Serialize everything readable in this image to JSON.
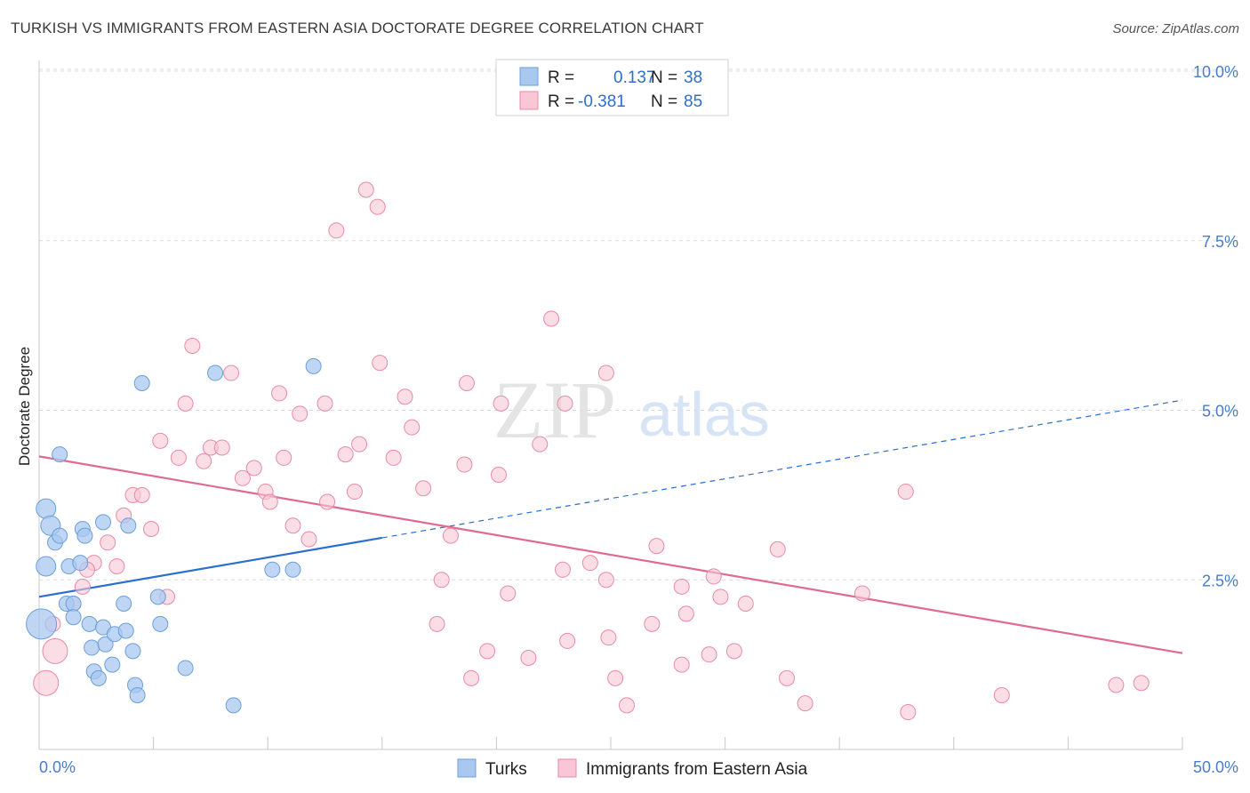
{
  "header": {
    "title": "TURKISH VS IMMIGRANTS FROM EASTERN ASIA DOCTORATE DEGREE CORRELATION CHART",
    "source": "Source: ZipAtlas.com"
  },
  "watermark": {
    "zip": "ZIP",
    "atlas": "atlas"
  },
  "legend": {
    "rows": [
      {
        "r_label": "R =",
        "r_value": "0.137",
        "n_label": "N =",
        "n_value": "38",
        "color": "#a8c8f0"
      },
      {
        "r_label": "R =",
        "r_value": "-0.381",
        "n_label": "N =",
        "n_value": "85",
        "color": "#f5b8cb"
      }
    ]
  },
  "bottom_legend": {
    "items": [
      {
        "label": "Turks",
        "color": "#a8c8f0"
      },
      {
        "label": "Immigrants from Eastern Asia",
        "color": "#f5b8cb"
      }
    ]
  },
  "colors": {
    "turks_fill": "#a8c8f0",
    "turks_stroke": "#6b9fd8",
    "turks_line": "#2a6fd0",
    "imm_fill": "#f8c6d5",
    "imm_stroke": "#e88aa8",
    "imm_line": "#e06a92",
    "grid": "#dcdcdc",
    "axis_text": "#4a7cc7"
  },
  "chart_data": {
    "type": "scatter",
    "title": "TURKISH VS IMMIGRANTS FROM EASTERN ASIA DOCTORATE DEGREE CORRELATION CHART",
    "xlabel": "",
    "ylabel": "Doctorate Degree",
    "xlim": [
      0,
      50
    ],
    "ylim": [
      0,
      10.5
    ],
    "x_tick_labels": [
      "0.0%",
      "50.0%"
    ],
    "y_ticks": [
      2.5,
      5.0,
      7.5,
      10.0
    ],
    "y_tick_labels": [
      "2.5%",
      "5.0%",
      "7.5%",
      "10.0%"
    ],
    "grid": true,
    "legend_position": "top-center",
    "series": [
      {
        "name": "Turks",
        "points": [
          [
            0.3,
            3.55
          ],
          [
            0.5,
            3.3
          ],
          [
            0.7,
            3.05
          ],
          [
            0.9,
            3.15
          ],
          [
            0.3,
            2.7
          ],
          [
            1.3,
            2.7
          ],
          [
            1.9,
            3.25
          ],
          [
            2.0,
            3.15
          ],
          [
            1.8,
            2.75
          ],
          [
            1.2,
            2.15
          ],
          [
            1.5,
            2.15
          ],
          [
            1.5,
            1.95
          ],
          [
            0.9,
            4.35
          ],
          [
            2.2,
            1.85
          ],
          [
            2.3,
            1.5
          ],
          [
            2.9,
            1.55
          ],
          [
            2.8,
            1.8
          ],
          [
            3.3,
            1.7
          ],
          [
            3.8,
            1.75
          ],
          [
            4.1,
            1.45
          ],
          [
            2.4,
            1.15
          ],
          [
            2.6,
            1.05
          ],
          [
            3.2,
            1.25
          ],
          [
            4.2,
            0.95
          ],
          [
            4.3,
            0.8
          ],
          [
            3.7,
            2.15
          ],
          [
            2.8,
            3.35
          ],
          [
            3.9,
            3.3
          ],
          [
            4.5,
            5.4
          ],
          [
            7.7,
            5.55
          ],
          [
            12.0,
            5.65
          ],
          [
            5.2,
            2.25
          ],
          [
            5.3,
            1.85
          ],
          [
            6.4,
            1.2
          ],
          [
            8.5,
            0.65
          ],
          [
            10.2,
            2.65
          ],
          [
            11.1,
            2.65
          ],
          [
            0.1,
            1.85
          ]
        ],
        "trend": {
          "x0": 0,
          "y0": 2.25,
          "x1": 15.0,
          "y1": 3.12,
          "dash_to_x": 50,
          "dash_to_y": 5.15
        }
      },
      {
        "name": "Immigrants from Eastern Asia",
        "points": [
          [
            14.3,
            8.25
          ],
          [
            14.8,
            8.0
          ],
          [
            13.0,
            7.65
          ],
          [
            22.4,
            6.35
          ],
          [
            6.7,
            5.95
          ],
          [
            14.9,
            5.7
          ],
          [
            8.4,
            5.55
          ],
          [
            24.8,
            5.55
          ],
          [
            10.5,
            5.25
          ],
          [
            16.0,
            5.2
          ],
          [
            6.4,
            5.1
          ],
          [
            12.5,
            5.1
          ],
          [
            18.7,
            5.4
          ],
          [
            20.2,
            5.1
          ],
          [
            23.0,
            5.1
          ],
          [
            11.4,
            4.95
          ],
          [
            16.3,
            4.75
          ],
          [
            5.3,
            4.55
          ],
          [
            7.5,
            4.45
          ],
          [
            8.0,
            4.45
          ],
          [
            13.4,
            4.35
          ],
          [
            15.5,
            4.3
          ],
          [
            6.1,
            4.3
          ],
          [
            10.7,
            4.3
          ],
          [
            14.0,
            4.5
          ],
          [
            21.9,
            4.5
          ],
          [
            7.2,
            4.25
          ],
          [
            18.6,
            4.2
          ],
          [
            9.4,
            4.15
          ],
          [
            8.9,
            4.0
          ],
          [
            20.1,
            4.05
          ],
          [
            16.8,
            3.85
          ],
          [
            9.9,
            3.8
          ],
          [
            13.8,
            3.8
          ],
          [
            4.1,
            3.75
          ],
          [
            4.5,
            3.75
          ],
          [
            12.6,
            3.65
          ],
          [
            10.1,
            3.65
          ],
          [
            37.9,
            3.8
          ],
          [
            3.7,
            3.45
          ],
          [
            4.9,
            3.25
          ],
          [
            11.1,
            3.3
          ],
          [
            18.0,
            3.15
          ],
          [
            11.8,
            3.1
          ],
          [
            3.0,
            3.05
          ],
          [
            27.0,
            3.0
          ],
          [
            32.3,
            2.95
          ],
          [
            2.4,
            2.75
          ],
          [
            24.1,
            2.75
          ],
          [
            3.4,
            2.7
          ],
          [
            22.9,
            2.65
          ],
          [
            2.1,
            2.65
          ],
          [
            1.9,
            2.4
          ],
          [
            29.5,
            2.55
          ],
          [
            17.6,
            2.5
          ],
          [
            24.8,
            2.5
          ],
          [
            28.1,
            2.4
          ],
          [
            20.5,
            2.3
          ],
          [
            36.0,
            2.3
          ],
          [
            29.8,
            2.25
          ],
          [
            5.6,
            2.25
          ],
          [
            1.5,
            2.15
          ],
          [
            30.9,
            2.15
          ],
          [
            28.3,
            2.0
          ],
          [
            17.4,
            1.85
          ],
          [
            26.8,
            1.85
          ],
          [
            0.6,
            1.85
          ],
          [
            24.9,
            1.65
          ],
          [
            23.1,
            1.6
          ],
          [
            19.6,
            1.45
          ],
          [
            30.4,
            1.45
          ],
          [
            29.3,
            1.4
          ],
          [
            21.4,
            1.35
          ],
          [
            0.7,
            1.45
          ],
          [
            28.1,
            1.25
          ],
          [
            18.9,
            1.05
          ],
          [
            25.2,
            1.05
          ],
          [
            32.7,
            1.05
          ],
          [
            0.3,
            0.98
          ],
          [
            47.1,
            0.95
          ],
          [
            48.2,
            0.98
          ],
          [
            42.1,
            0.8
          ],
          [
            25.7,
            0.65
          ],
          [
            33.5,
            0.68
          ],
          [
            38.0,
            0.55
          ]
        ],
        "trend": {
          "x0": 0,
          "y0": 4.32,
          "x1": 50,
          "y1": 1.42
        }
      }
    ]
  }
}
